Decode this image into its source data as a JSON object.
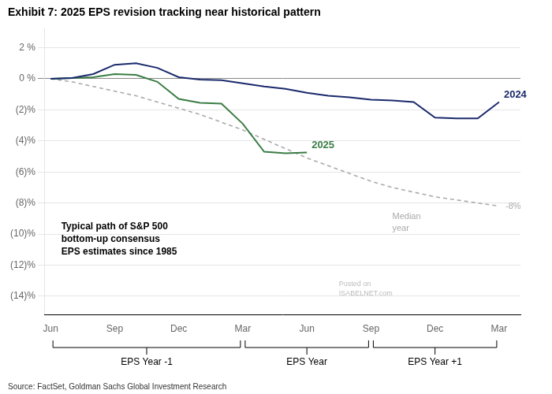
{
  "chart_data": {
    "type": "line",
    "title": "Exhibit 7: 2025 EPS revision tracking near historical pattern",
    "source": "Source: FactSet, Goldman Sachs Global Investment Research",
    "xlim": [
      -0.3,
      22.0
    ],
    "xticks": [
      {
        "value": 0,
        "label": "Jun"
      },
      {
        "value": 3,
        "label": "Sep"
      },
      {
        "value": 6,
        "label": "Dec"
      },
      {
        "value": 9,
        "label": "Mar"
      },
      {
        "value": 12,
        "label": "Jun"
      },
      {
        "value": 15,
        "label": "Sep"
      },
      {
        "value": 18,
        "label": "Dec"
      },
      {
        "value": 21,
        "label": "Mar"
      }
    ],
    "ylim": [
      -15.2,
      3.2
    ],
    "yticks": [
      {
        "value": 2,
        "label": "2 %"
      },
      {
        "value": 0,
        "label": "0 %"
      },
      {
        "value": -2,
        "label": "(2)%"
      },
      {
        "value": -4,
        "label": "(4)%"
      },
      {
        "value": -6,
        "label": "(6)%"
      },
      {
        "value": -8,
        "label": "(8)%"
      },
      {
        "value": -10,
        "label": "(10)%"
      },
      {
        "value": -12,
        "label": "(12)%"
      },
      {
        "value": -14,
        "label": "(14)%"
      }
    ],
    "grid": "y",
    "series": [
      {
        "name": "2024",
        "color": "#1a2a6c",
        "line_style": "solid",
        "x": [
          0,
          1,
          2,
          3,
          4,
          5,
          6,
          7,
          8,
          9,
          10,
          11,
          12,
          13,
          14,
          15,
          16,
          17,
          18,
          19,
          20,
          21
        ],
        "values": [
          0.0,
          0.05,
          0.3,
          0.9,
          1.0,
          0.7,
          0.1,
          -0.05,
          -0.1,
          -0.3,
          -0.5,
          -0.65,
          -0.9,
          -1.1,
          -1.2,
          -1.35,
          -1.4,
          -1.5,
          -2.5,
          -2.55,
          -2.55,
          -1.5
        ]
      },
      {
        "name": "2025",
        "color": "#3a7d44",
        "line_style": "solid",
        "x": [
          0,
          1,
          2,
          3,
          4,
          5,
          6,
          7,
          8,
          9,
          10,
          11,
          12
        ],
        "values": [
          0.0,
          0.05,
          0.1,
          0.3,
          0.25,
          -0.2,
          -1.3,
          -1.55,
          -1.6,
          -2.9,
          -4.7,
          -4.8,
          -4.75
        ]
      },
      {
        "color": "#aaaaaa",
        "line_style": "dashed",
        "x": [
          0,
          1,
          2,
          3,
          4,
          5,
          6,
          7,
          8,
          9,
          10,
          11,
          12,
          13,
          14,
          15,
          16,
          17,
          18,
          19,
          20,
          21
        ],
        "values": [
          0.0,
          -0.2,
          -0.5,
          -0.8,
          -1.1,
          -1.5,
          -1.9,
          -2.3,
          -2.8,
          -3.3,
          -3.9,
          -4.5,
          -5.1,
          -5.6,
          -6.1,
          -6.6,
          -7.0,
          -7.3,
          -7.6,
          -7.8,
          -8.0,
          -8.2
        ]
      }
    ],
    "annotations": [
      {
        "text": "Median\nyear",
        "x": 16.0,
        "y": -8.6,
        "color": "#aaaaaa"
      },
      {
        "text": "-8%",
        "x": 21.3,
        "y": -8.2,
        "color": "#aaaaaa"
      },
      {
        "text": "Typical path of S&P 500\nbottom-up consensus\nEPS estimates since 1985",
        "x": 0.5,
        "y": -9.2
      },
      {
        "text": "Posted on\nISABELNET.com",
        "x": 13.5,
        "y": -13.0,
        "color": "#bbbbbb"
      }
    ],
    "brackets": [
      {
        "x_start": 0,
        "x_end": 9,
        "label": "EPS Year -1"
      },
      {
        "x_start": 9,
        "x_end": 15,
        "label": "EPS Year"
      },
      {
        "x_start": 15,
        "x_end": 21,
        "label": "EPS Year +1"
      }
    ]
  }
}
